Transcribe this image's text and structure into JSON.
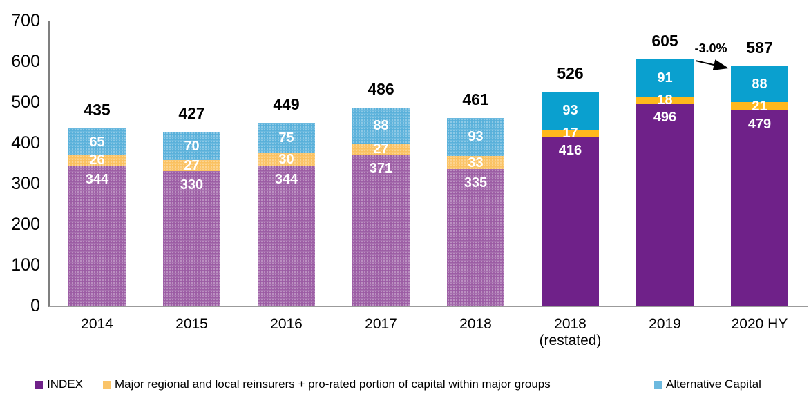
{
  "chart_data": {
    "type": "bar",
    "stacked": true,
    "title": "",
    "xlabel": "",
    "ylabel": "",
    "ylim": [
      0,
      700
    ],
    "ytick_step": 100,
    "grid": false,
    "legend_position": "bottom",
    "categories": [
      {
        "label": "2014",
        "sublabel": ""
      },
      {
        "label": "2015",
        "sublabel": ""
      },
      {
        "label": "2016",
        "sublabel": ""
      },
      {
        "label": "2017",
        "sublabel": ""
      },
      {
        "label": "2018",
        "sublabel": ""
      },
      {
        "label": "2018",
        "sublabel": "(restated)"
      },
      {
        "label": "2019",
        "sublabel": ""
      },
      {
        "label": "2020 HY",
        "sublabel": ""
      }
    ],
    "series": [
      {
        "name": "INDEX",
        "values": [
          344,
          330,
          344,
          371,
          335,
          416,
          496,
          479
        ],
        "solid_color": "#6F2189",
        "pattern_color": "#9B5CA4",
        "legend_color": "#6F2189",
        "label_position": "inside-top"
      },
      {
        "name": "Major regional and local reinsurers + pro-rated portion of capital within major groups",
        "values": [
          26,
          27,
          30,
          27,
          33,
          17,
          18,
          21
        ],
        "solid_color": "#FFB81C",
        "pattern_color": "#FAC05E",
        "legend_color": "#FAC469",
        "label_position": "center"
      },
      {
        "name": "Alternative Capital",
        "values": [
          65,
          70,
          75,
          88,
          93,
          93,
          91,
          88
        ],
        "solid_color": "#0AA0CF",
        "pattern_color": "#58B0DA",
        "legend_color": "#6CB9DF",
        "label_position": "center"
      }
    ],
    "totals": [
      435,
      427,
      449,
      486,
      461,
      526,
      605,
      587
    ],
    "pattern_category_count": 5,
    "annotation": {
      "text": "-3.0%",
      "from_category": "2019",
      "to_category": "2020 HY"
    }
  },
  "legend": {
    "items_from_series": true
  }
}
